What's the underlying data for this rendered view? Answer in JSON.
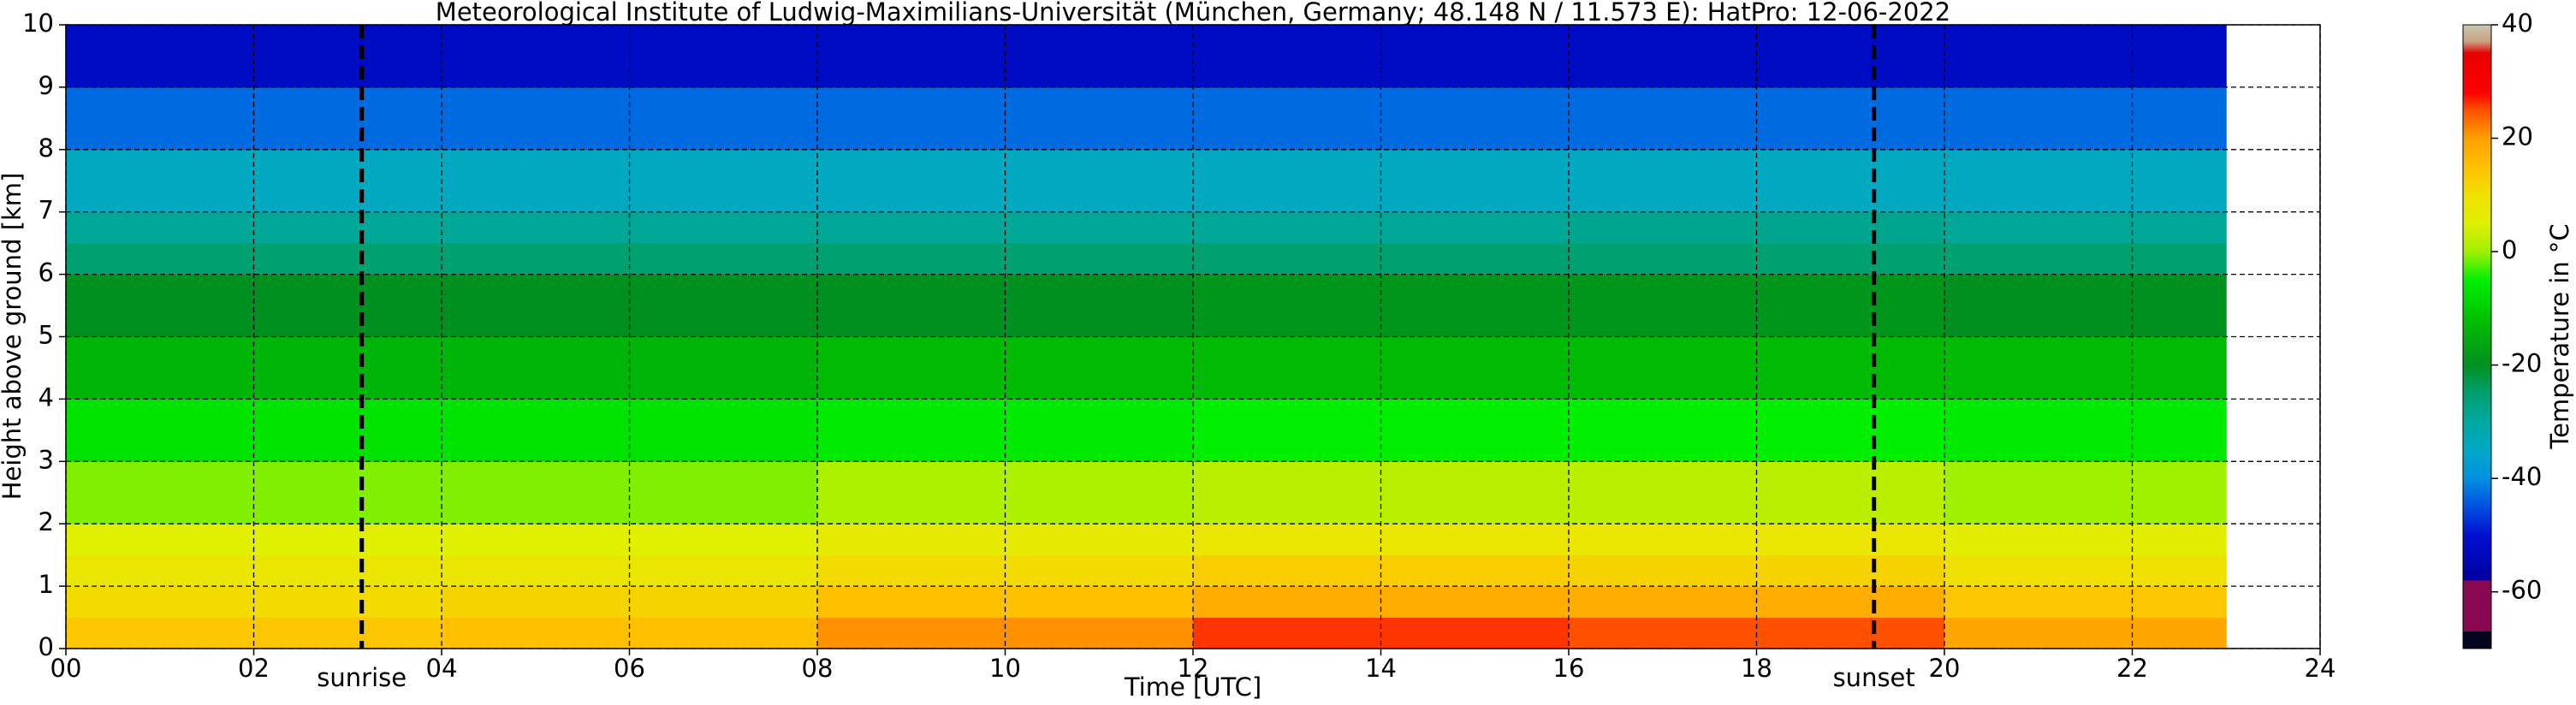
{
  "chart_data": {
    "type": "heatmap",
    "title": "Meteorological Institute of Ludwig-Maximilians-Universität (München, Germany; 48.148 N / 11.573 E):    HatPro: 12-06-2022",
    "xlabel": "Time [UTC]",
    "ylabel": "Height above ground [km]",
    "colorbar_label": "Temperature in °C",
    "xlim": [
      0,
      24
    ],
    "xticks": [
      {
        "value": 0,
        "label": "00"
      },
      {
        "value": 2,
        "label": "02"
      },
      {
        "value": 4,
        "label": "04"
      },
      {
        "value": 6,
        "label": "06"
      },
      {
        "value": 8,
        "label": "08"
      },
      10,
      12,
      14,
      16,
      18,
      20,
      22,
      24
    ],
    "ylim": [
      0,
      10
    ],
    "yticks": [
      0,
      1,
      2,
      3,
      4,
      5,
      6,
      7,
      8,
      9,
      10
    ],
    "grid": true,
    "x_edges": [
      0,
      4,
      8,
      12,
      16,
      20,
      23
    ],
    "y_edges": [
      0,
      0.5,
      1,
      1.5,
      2,
      3,
      4,
      5,
      6,
      6.5,
      7,
      8,
      9,
      10
    ],
    "z": [
      [
        14,
        15,
        21,
        26,
        25,
        19
      ],
      [
        11,
        12,
        15,
        18,
        18,
        14
      ],
      [
        8,
        8,
        11,
        13,
        12,
        10
      ],
      [
        5,
        5,
        7,
        8,
        8,
        6
      ],
      [
        -1,
        -1,
        1,
        2,
        2,
        0
      ],
      [
        -7,
        -7,
        -6,
        -5,
        -5,
        -6
      ],
      [
        -14,
        -14,
        -13,
        -13,
        -13,
        -13
      ],
      [
        -20,
        -20,
        -20,
        -19,
        -19,
        -20
      ],
      [
        -25,
        -25,
        -25,
        -25,
        -25,
        -25
      ],
      [
        -29,
        -29,
        -29,
        -29,
        -28,
        -29
      ],
      [
        -34,
        -34,
        -34,
        -34,
        -34,
        -34
      ],
      [
        -43,
        -43,
        -43,
        -43,
        -43,
        -43
      ],
      [
        -52,
        -52,
        -52,
        -52,
        -52,
        -52
      ]
    ],
    "clim": [
      -70,
      40
    ],
    "cticks": [
      -60,
      -40,
      -20,
      0,
      20,
      40
    ],
    "colormap": [
      [
        -70,
        "#050520"
      ],
      [
        -67,
        "#050520"
      ],
      [
        -67,
        "#8a0850"
      ],
      [
        -58,
        "#8a0850"
      ],
      [
        -58,
        "#0000a0"
      ],
      [
        -50,
        "#0010d0"
      ],
      [
        -45,
        "#0050e0"
      ],
      [
        -40,
        "#0090e0"
      ],
      [
        -35,
        "#00a8c8"
      ],
      [
        -30,
        "#00a8a0"
      ],
      [
        -25,
        "#00a070"
      ],
      [
        -20,
        "#009020"
      ],
      [
        -12,
        "#00c000"
      ],
      [
        -5,
        "#00f000"
      ],
      [
        0,
        "#a0f000"
      ],
      [
        5,
        "#e0f000"
      ],
      [
        10,
        "#f0e000"
      ],
      [
        15,
        "#ffc000"
      ],
      [
        20,
        "#ffa000"
      ],
      [
        25,
        "#ff5000"
      ],
      [
        28,
        "#ff0000"
      ],
      [
        35,
        "#e80000"
      ],
      [
        37,
        "#c8a080"
      ],
      [
        40,
        "#c8c8b0"
      ]
    ],
    "annotations": [
      {
        "text": "sunrise",
        "x": 3.15
      },
      {
        "text": "sunset",
        "x": 19.25
      }
    ]
  }
}
